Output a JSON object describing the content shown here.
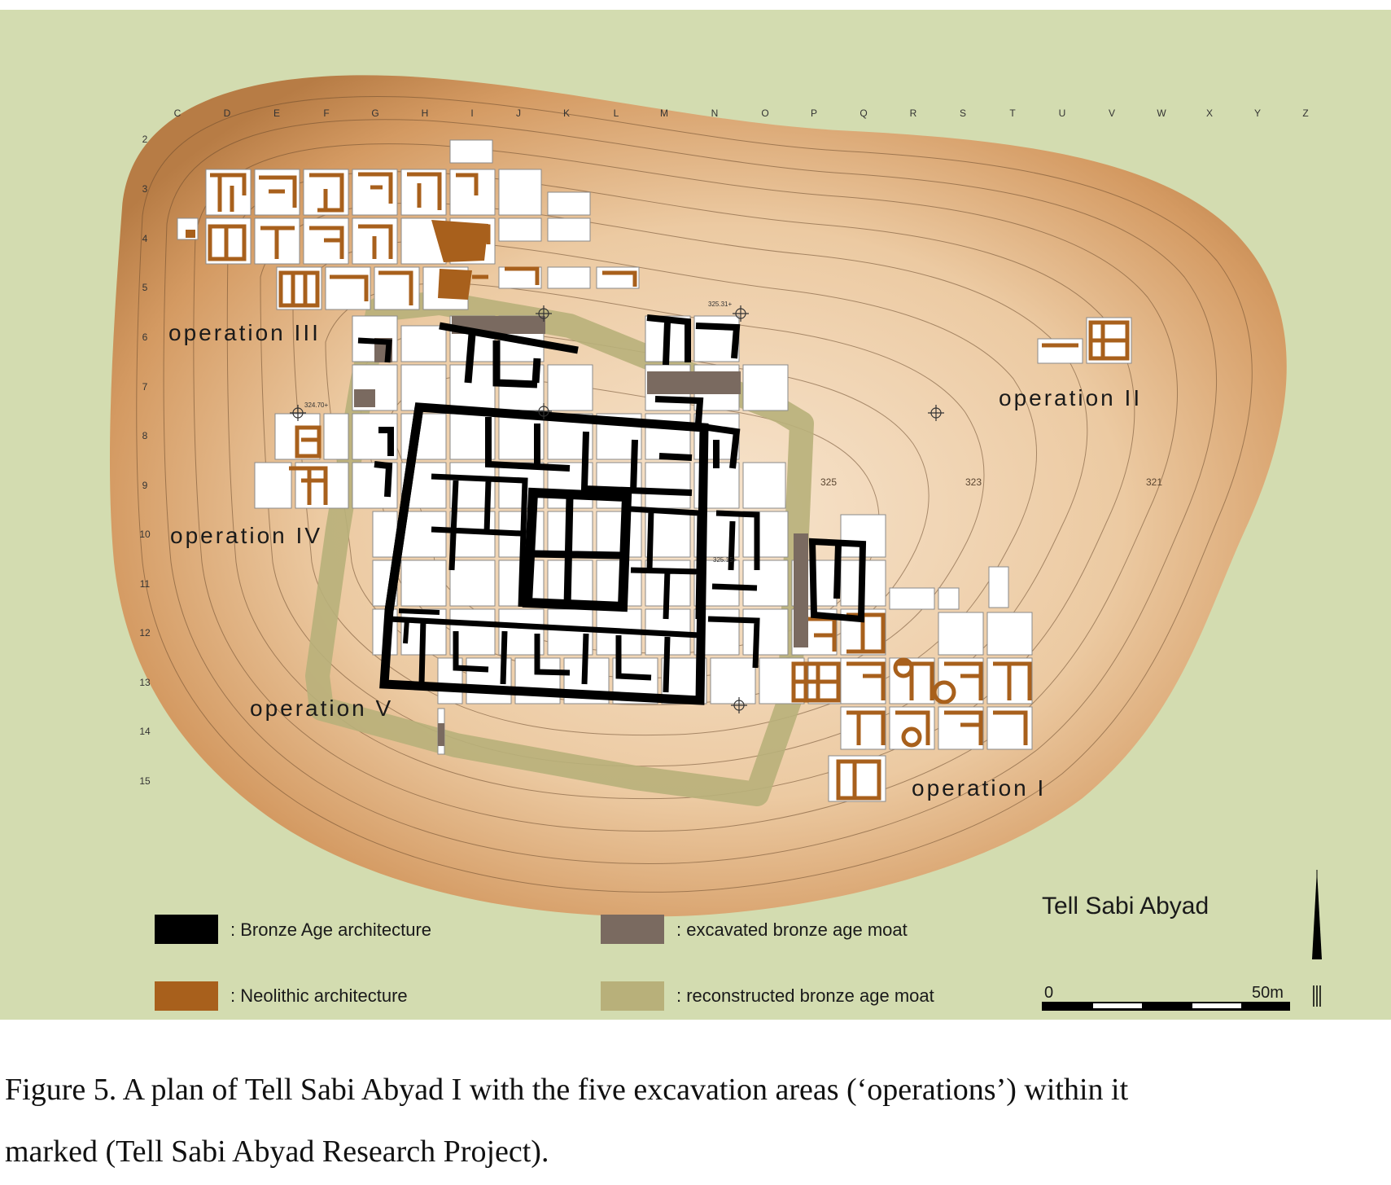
{
  "map": {
    "title": "Tell Sabi Abyad",
    "colors": {
      "background": "#d3dcb0",
      "mound_edge": "#b77c45",
      "mound_center": "#f5dfc6",
      "bronze_age": "#000000",
      "neolithic": "#a8601c",
      "excavated_moat": "#7a6a60",
      "reconstructed_moat": "#b8b07a",
      "trench": "#ffffff"
    },
    "grid_columns": [
      "C",
      "D",
      "E",
      "F",
      "G",
      "H",
      "I",
      "J",
      "K",
      "L",
      "M",
      "N",
      "O",
      "P",
      "Q",
      "R",
      "S",
      "T",
      "U",
      "V",
      "W",
      "X",
      "Y",
      "Z"
    ],
    "grid_rows": [
      "2",
      "3",
      "4",
      "5",
      "6",
      "7",
      "8",
      "9",
      "10",
      "11",
      "12",
      "13",
      "14",
      "15"
    ],
    "operations": [
      "operation III",
      "operation II",
      "operation IV",
      "operation V",
      "operation I"
    ],
    "contour_labels": [
      "325",
      "323",
      "321"
    ],
    "elevation_labels": [
      "325.31+",
      "324.70+",
      "325.15+"
    ],
    "legend": [
      {
        "label": ": Bronze Age architecture",
        "color": "#000000",
        "icon": "legend-swatch"
      },
      {
        "label": ": excavated bronze age moat",
        "color": "#7a6a60",
        "icon": "legend-swatch"
      },
      {
        "label": ": Neolithic architecture",
        "color": "#a8601c",
        "icon": "legend-swatch"
      },
      {
        "label": ": reconstructed bronze age moat",
        "color": "#b8b07a",
        "icon": "legend-swatch"
      }
    ],
    "scale": {
      "start": "0",
      "end": "50m"
    },
    "north_arrow_icon": "north-arrow-icon"
  },
  "caption": {
    "line1": "Figure 5. A plan of Tell Sabi Abyad I with the five excavation areas (‘operations’) within it",
    "line2": "marked (Tell Sabi Abyad Research Project)."
  }
}
